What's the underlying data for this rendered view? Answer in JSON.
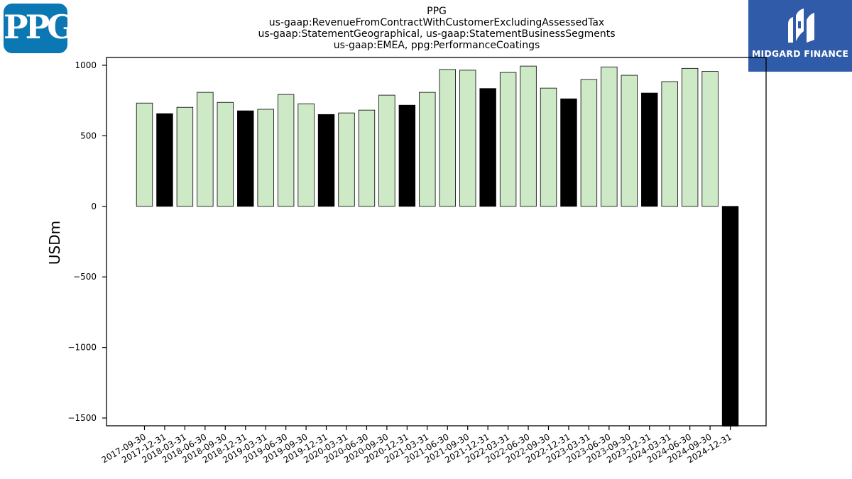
{
  "logos": {
    "left_text": "PPG",
    "right_text": "MIDGARD FINANCE"
  },
  "colors": {
    "bar_light": "#cde9c5",
    "bar_dark": "#000000",
    "axis": "#000000",
    "ppg_blue": "#0b77b3",
    "midgard_blue": "#2f5ba8"
  },
  "chart_data": {
    "type": "bar",
    "title": [
      "PPG",
      "us-gaap:RevenueFromContractWithCustomerExcludingAssessedTax",
      "us-gaap:StatementGeographical, us-gaap:StatementBusinessSegments",
      "us-gaap:EMEA, ppg:PerformanceCoatings"
    ],
    "xlabel": "",
    "ylabel": "USDm",
    "ylim": [
      -1555,
      1055
    ],
    "yticks": [
      -1500,
      -1000,
      -500,
      0,
      500,
      1000
    ],
    "ytick_labels": [
      "−1500",
      "−1000",
      "−500",
      "0",
      "500",
      "1000"
    ],
    "grid": false,
    "categories": [
      "2017-09-30",
      "2017-12-31",
      "2018-03-31",
      "2018-06-30",
      "2018-09-30",
      "2018-12-31",
      "2019-03-31",
      "2019-06-30",
      "2019-09-30",
      "2019-12-31",
      "2020-03-31",
      "2020-06-30",
      "2020-09-30",
      "2020-12-31",
      "2021-03-31",
      "2021-06-30",
      "2021-09-30",
      "2021-12-31",
      "2022-03-31",
      "2022-06-30",
      "2022-09-30",
      "2022-12-31",
      "2023-03-31",
      "2023-06-30",
      "2023-09-30",
      "2023-12-31",
      "2024-03-31",
      "2024-06-30",
      "2024-09-30",
      "2024-12-31"
    ],
    "values": [
      732,
      657,
      702,
      808,
      737,
      677,
      688,
      793,
      727,
      651,
      662,
      682,
      788,
      717,
      808,
      970,
      965,
      835,
      949,
      994,
      838,
      762,
      899,
      988,
      929,
      803,
      884,
      978,
      957,
      -1558
    ],
    "bar_fill_type": [
      "light",
      "dark",
      "light",
      "light",
      "light",
      "dark",
      "light",
      "light",
      "light",
      "dark",
      "light",
      "light",
      "light",
      "dark",
      "light",
      "light",
      "light",
      "dark",
      "light",
      "light",
      "light",
      "dark",
      "light",
      "light",
      "light",
      "dark",
      "light",
      "light",
      "light",
      "dark"
    ]
  }
}
